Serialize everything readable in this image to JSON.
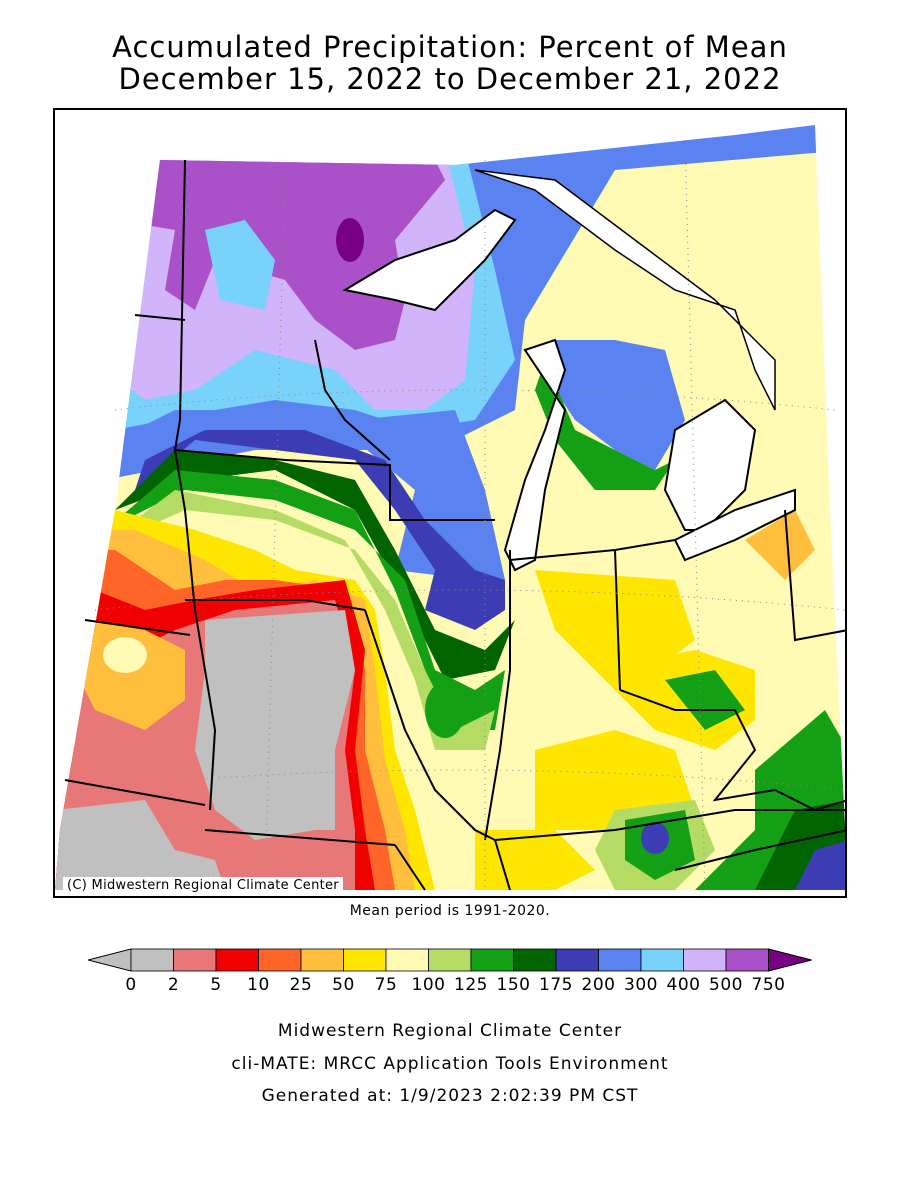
{
  "title": {
    "line1": "Accumulated Precipitation: Percent of Mean",
    "line2": "December 15, 2022 to December 21, 2022"
  },
  "map": {
    "copyright": "(C) Midwestern Regional Climate Center",
    "mean_note": "Mean period is 1991-2020."
  },
  "legend": {
    "bins": [
      {
        "label": "0",
        "color": "#c0c0c0"
      },
      {
        "label": "2",
        "color": "#c0c0c0"
      },
      {
        "label": "5",
        "color": "#e87878"
      },
      {
        "label": "10",
        "color": "#f00000"
      },
      {
        "label": "25",
        "color": "#ff6428"
      },
      {
        "label": "50",
        "color": "#ffbe3c"
      },
      {
        "label": "75",
        "color": "#ffe600"
      },
      {
        "label": "100",
        "color": "#fffab4"
      },
      {
        "label": "125",
        "color": "#b4dc64"
      },
      {
        "label": "150",
        "color": "#14a014"
      },
      {
        "label": "175",
        "color": "#006400"
      },
      {
        "label": "200",
        "color": "#3c3cb4"
      },
      {
        "label": "300",
        "color": "#5a82f0"
      },
      {
        "label": "400",
        "color": "#78d2fa"
      },
      {
        "label": "500",
        "color": "#d2b4fa"
      },
      {
        "label": "750",
        "color": "#aa50c8"
      }
    ],
    "under_color": "#c0c0c0",
    "over_color": "#780082"
  },
  "footer": {
    "line1": "Midwestern Regional Climate Center",
    "line2": "cli-MATE: MRCC Application Tools Environment",
    "line3": "Generated at: 1/9/2023 2:02:39 PM CST"
  }
}
